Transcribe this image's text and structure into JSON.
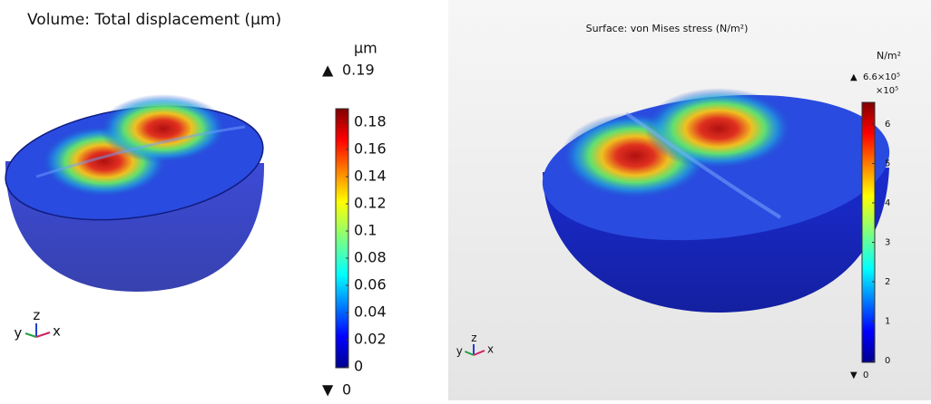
{
  "panels": [
    {
      "title": "Volume: Total displacement (µm)",
      "unit": "µm",
      "max_label": "0.19",
      "min_label": "0",
      "ticks": [
        0.18,
        0.16,
        0.14,
        0.12,
        0.1,
        0.08,
        0.06,
        0.04,
        0.02,
        0
      ],
      "axes": [
        "y",
        "z",
        "x"
      ]
    },
    {
      "title": "Surface: von Mises stress (N/m²)",
      "unit": "N/m²",
      "max_label": "6.6×10⁵",
      "multiplier": "×10⁵",
      "min_label": "0",
      "ticks": [
        6,
        5,
        4,
        3,
        2,
        1,
        0
      ],
      "axes": [
        "y",
        "z",
        "x"
      ]
    }
  ]
}
